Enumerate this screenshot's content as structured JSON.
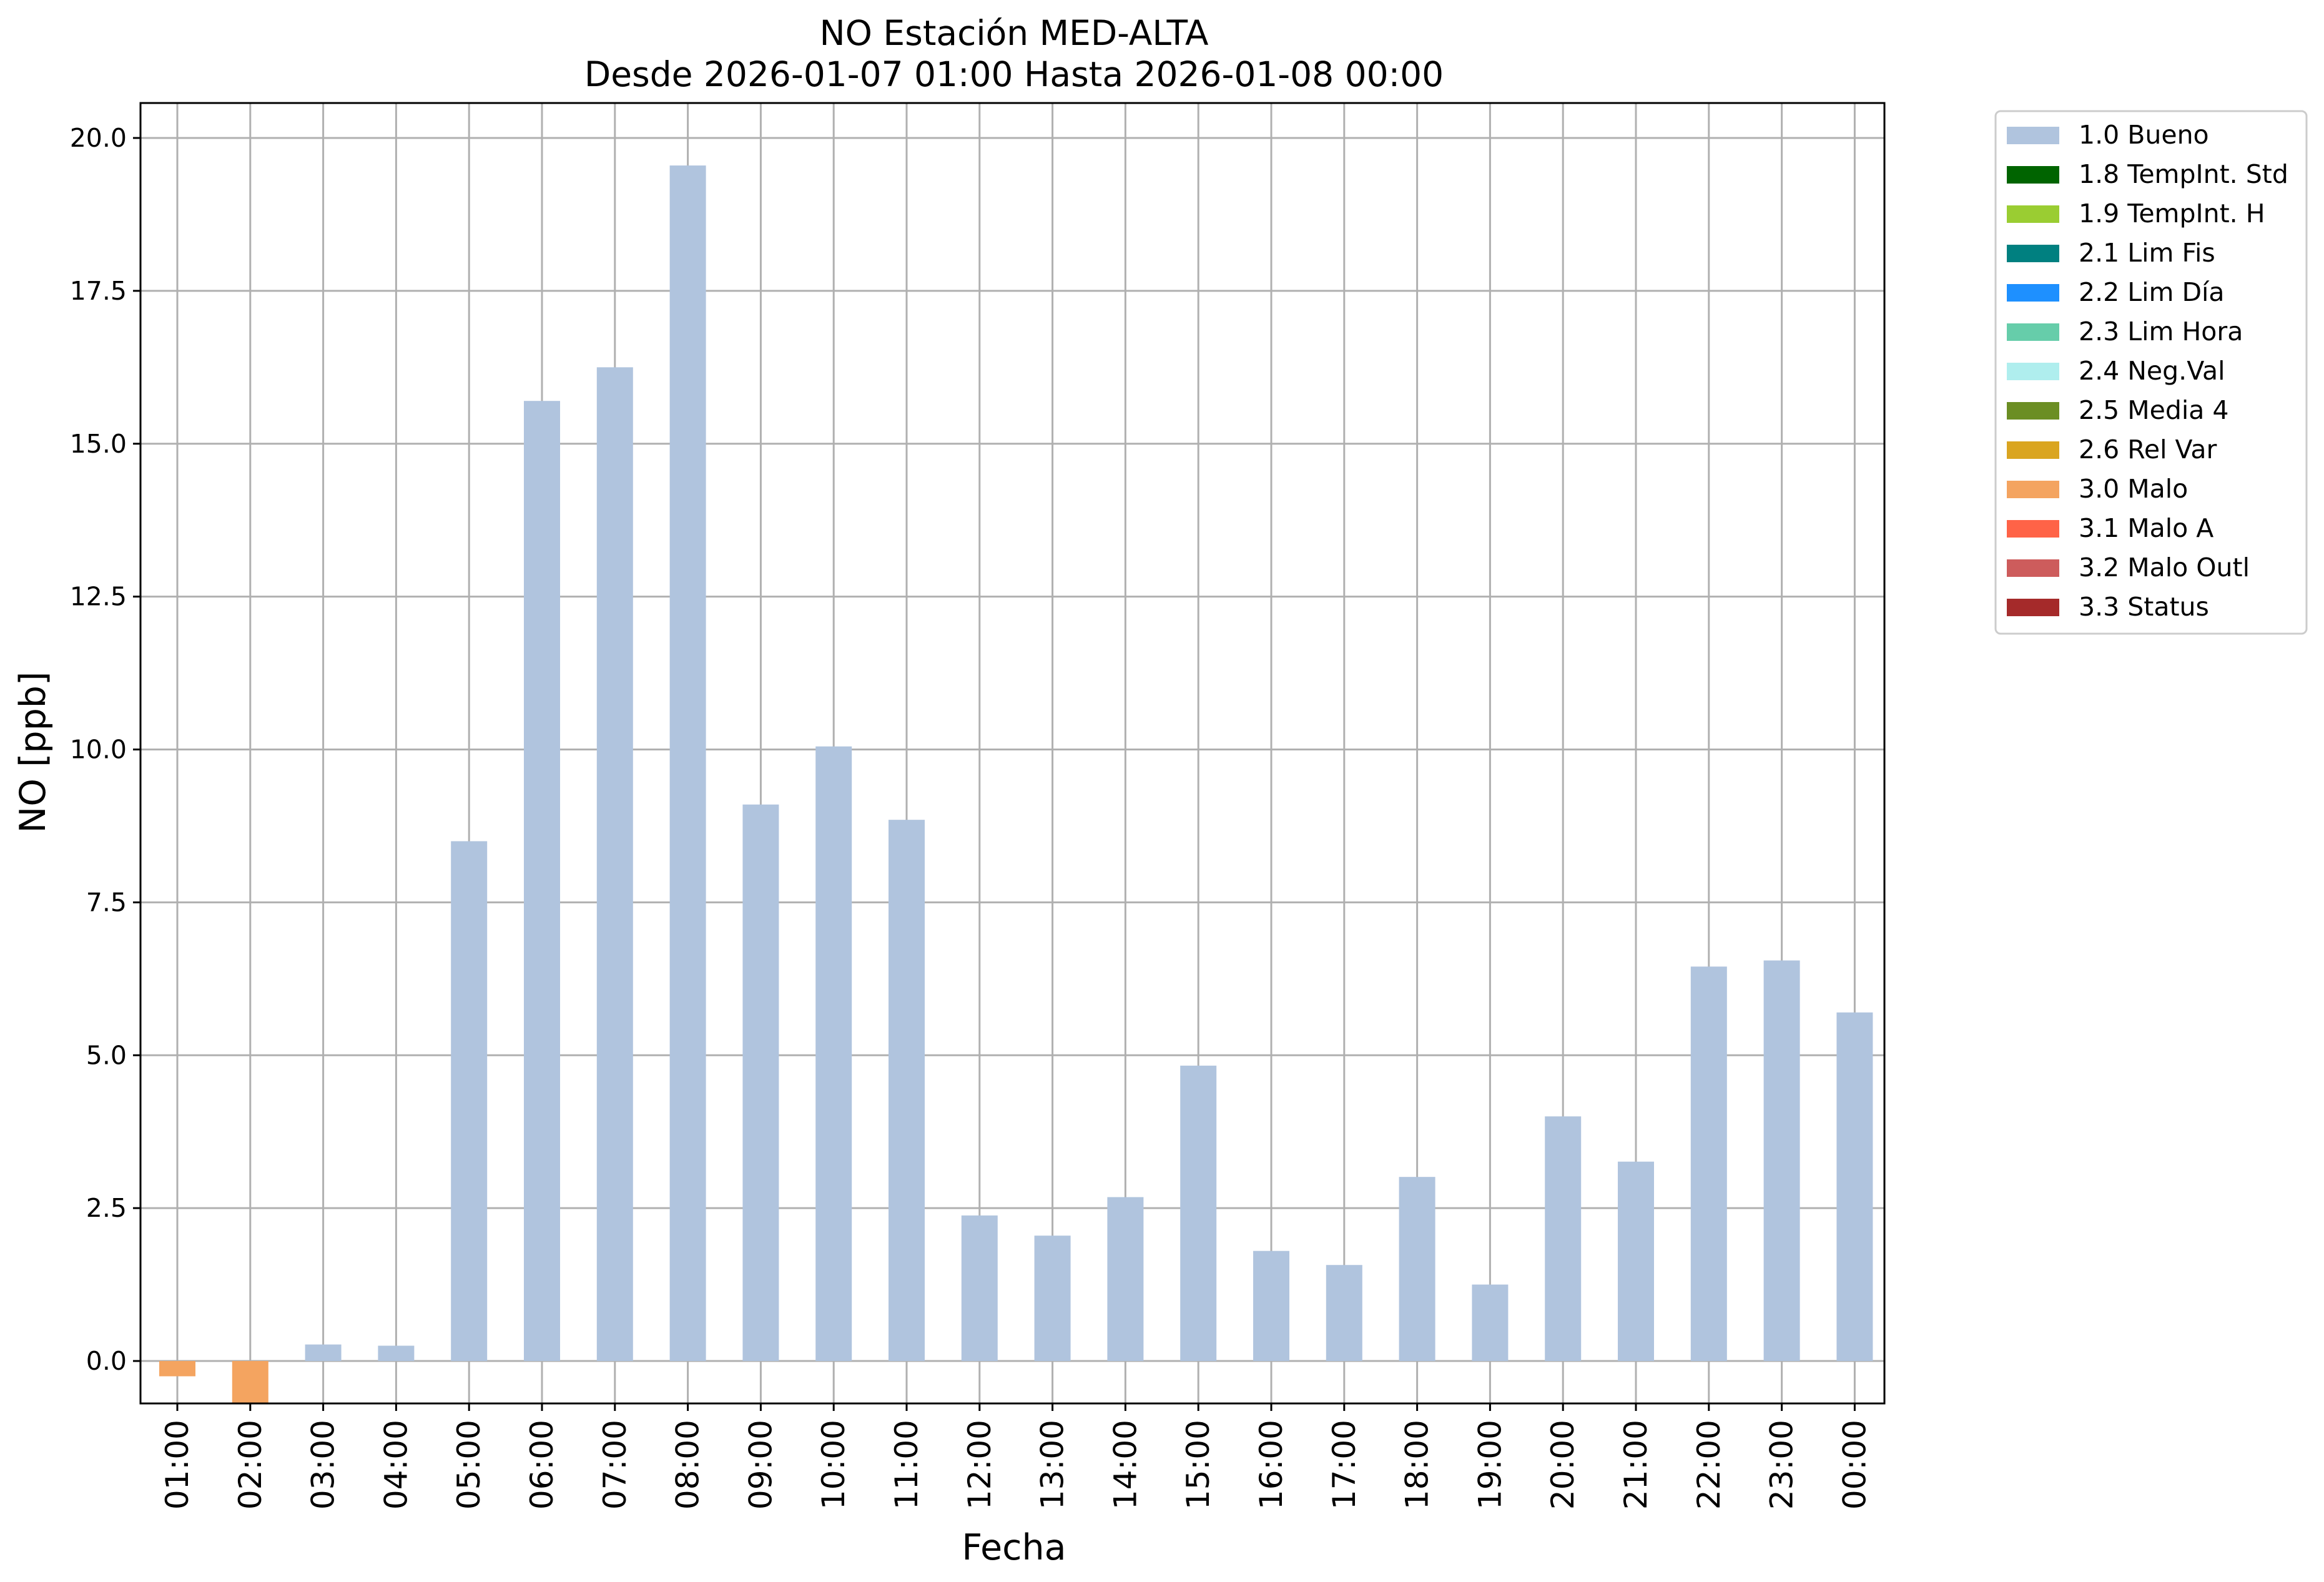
{
  "chart_data": {
    "type": "bar",
    "title": [
      "NO Estación MED-ALTA",
      "Desde 2026-01-07 01:00 Hasta 2026-01-08 00:00"
    ],
    "xlabel": "Fecha",
    "ylabel": "NO [ppb]",
    "ylim": [
      -0.7,
      20.6
    ],
    "yticks": [
      0,
      2.5,
      5,
      7.5,
      10,
      12.5,
      15,
      17.5,
      20
    ],
    "ytick_labels": [
      "0.0",
      "2.5",
      "5.0",
      "7.5",
      "10.0",
      "12.5",
      "15.0",
      "17.5",
      "20.0"
    ],
    "grid": true,
    "legend_position": "outside-right-top",
    "categories": [
      "01:00",
      "02:00",
      "03:00",
      "04:00",
      "05:00",
      "06:00",
      "07:00",
      "08:00",
      "09:00",
      "10:00",
      "11:00",
      "12:00",
      "13:00",
      "14:00",
      "15:00",
      "16:00",
      "17:00",
      "18:00",
      "19:00",
      "20:00",
      "21:00",
      "22:00",
      "23:00",
      "00:00"
    ],
    "values": [
      -0.25,
      -0.7,
      0.27,
      0.25,
      8.5,
      15.7,
      16.25,
      19.55,
      9.1,
      10.05,
      8.85,
      2.38,
      2.05,
      2.68,
      4.83,
      1.8,
      1.57,
      3.01,
      1.25,
      4.0,
      3.26,
      6.45,
      6.55,
      5.7
    ],
    "flags": [
      "3.0 Malo",
      "3.0 Malo",
      "1.0 Bueno",
      "1.0 Bueno",
      "1.0 Bueno",
      "1.0 Bueno",
      "1.0 Bueno",
      "1.0 Bueno",
      "1.0 Bueno",
      "1.0 Bueno",
      "1.0 Bueno",
      "1.0 Bueno",
      "1.0 Bueno",
      "1.0 Bueno",
      "1.0 Bueno",
      "1.0 Bueno",
      "1.0 Bueno",
      "1.0 Bueno",
      "1.0 Bueno",
      "1.0 Bueno",
      "1.0 Bueno",
      "1.0 Bueno",
      "1.0 Bueno",
      "1.0 Bueno"
    ],
    "legend": [
      {
        "label": "1.0 Bueno",
        "color": "#b0c4de"
      },
      {
        "label": "1.8 TempInt. Std",
        "color": "#006400"
      },
      {
        "label": "1.9 TempInt. H",
        "color": "#9acd32"
      },
      {
        "label": "2.1 Lim Fis",
        "color": "#008080"
      },
      {
        "label": "2.2 Lim Día",
        "color": "#1e90ff"
      },
      {
        "label": "2.3 Lim Hora",
        "color": "#66cdaa"
      },
      {
        "label": "2.4 Neg.Val",
        "color": "#afeeee"
      },
      {
        "label": "2.5 Media 4",
        "color": "#6b8e23"
      },
      {
        "label": "2.6 Rel Var",
        "color": "#daa520"
      },
      {
        "label": "3.0 Malo",
        "color": "#f4a460"
      },
      {
        "label": "3.1 Malo A",
        "color": "#ff6347"
      },
      {
        "label": "3.2 Malo Outl",
        "color": "#cd5c5c"
      },
      {
        "label": "3.3 Status",
        "color": "#a52a2a"
      }
    ]
  }
}
